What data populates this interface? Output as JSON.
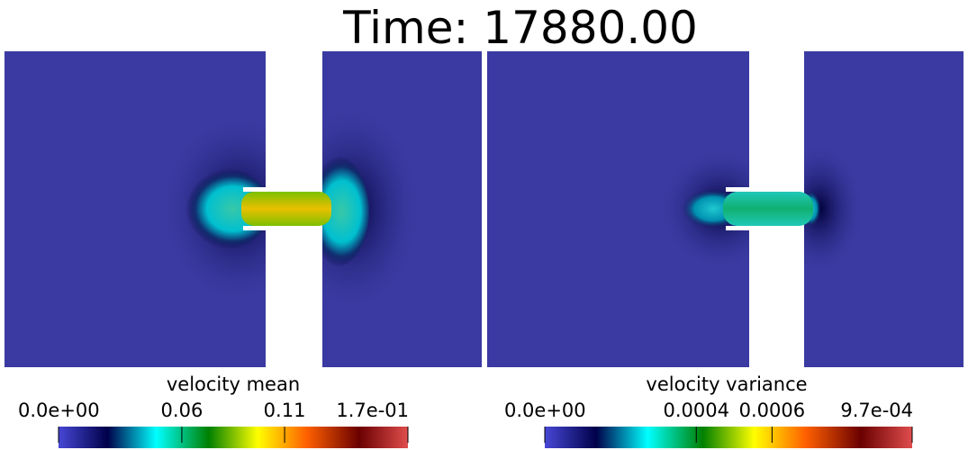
{
  "title": "Time: 17880.00",
  "panels": [
    {
      "colorbar": {
        "title": "velocity mean",
        "range": [
          0,
          0.17
        ],
        "ticks": [
          {
            "value": 0,
            "label": "0.0e+00"
          },
          0.06,
          0.11,
          {
            "value": 0.17,
            "label": "1.7e-01"
          }
        ]
      }
    },
    {
      "colorbar": {
        "title": "velocity variance",
        "range": [
          0,
          0.00097
        ],
        "ticks": [
          {
            "value": 0,
            "label": "0.0e+00"
          },
          0.0004,
          0.0006,
          {
            "value": 0.00097,
            "label": "9.7e-04"
          }
        ]
      }
    }
  ]
}
